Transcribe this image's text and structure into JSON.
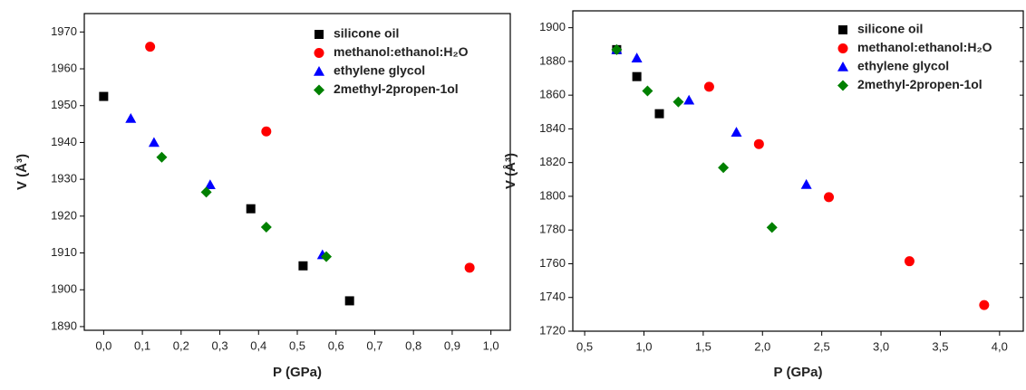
{
  "chart_data": [
    {
      "type": "scatter",
      "x_label": "P (GPa)",
      "y_label": "V (Å³)",
      "xlim": [
        -0.05,
        1.05
      ],
      "xticks": [
        {
          "value": 0,
          "label": "0,0"
        },
        {
          "value": 0.1,
          "label": "0,1"
        },
        {
          "value": 0.2,
          "label": "0,2"
        },
        {
          "value": 0.3,
          "label": "0,3"
        },
        {
          "value": 0.4,
          "label": "0,4"
        },
        {
          "value": 0.5,
          "label": "0,5"
        },
        {
          "value": 0.6,
          "label": "0,6"
        },
        {
          "value": 0.7,
          "label": "0,7"
        },
        {
          "value": 0.8,
          "label": "0,8"
        },
        {
          "value": 0.9,
          "label": "0,9"
        },
        {
          "value": 1.0,
          "label": "1,0"
        }
      ],
      "ylim": [
        1889,
        1975
      ],
      "yticks": [
        1890,
        1900,
        1910,
        1920,
        1930,
        1940,
        1950,
        1960,
        1970
      ],
      "series": [
        {
          "name": "silicone oil",
          "color": "#000000",
          "marker": "square",
          "x": [
            0.0,
            0.38,
            0.515,
            0.635
          ],
          "values": [
            1952.5,
            1922,
            1906.5,
            1897
          ]
        },
        {
          "name": "methanol:ethanol:H₂O",
          "color": "#ff0000",
          "marker": "circle",
          "x": [
            0.12,
            0.42,
            0.945
          ],
          "values": [
            1966,
            1943,
            1906
          ]
        },
        {
          "name": "ethylene glycol",
          "color": "#0000ff",
          "marker": "triangle",
          "x": [
            0.07,
            0.13,
            0.275,
            0.565
          ],
          "values": [
            1946.5,
            1940,
            1928.5,
            1909.5
          ]
        },
        {
          "name": "2methyl-2propen-1ol",
          "color": "#008000",
          "marker": "diamond",
          "x": [
            0.15,
            0.265,
            0.42,
            0.575
          ],
          "values": [
            1936,
            1926.5,
            1917,
            1909
          ]
        }
      ]
    },
    {
      "type": "scatter",
      "x_label": "P (GPa)",
      "y_label": "V (Å³)",
      "xlim": [
        0.4,
        4.2
      ],
      "xticks": [
        {
          "value": 0.5,
          "label": "0,5"
        },
        {
          "value": 1.0,
          "label": "1,0"
        },
        {
          "value": 1.5,
          "label": "1,5"
        },
        {
          "value": 2.0,
          "label": "2,0"
        },
        {
          "value": 2.5,
          "label": "2,5"
        },
        {
          "value": 3.0,
          "label": "3,0"
        },
        {
          "value": 3.5,
          "label": "3,5"
        },
        {
          "value": 4.0,
          "label": "4,0"
        }
      ],
      "ylim": [
        1720,
        1910
      ],
      "yticks": [
        1720,
        1740,
        1760,
        1780,
        1800,
        1820,
        1840,
        1860,
        1880,
        1900
      ],
      "series": [
        {
          "name": "silicone oil",
          "color": "#000000",
          "marker": "square",
          "x": [
            0.77,
            0.94,
            1.13
          ],
          "values": [
            1887,
            1871,
            1849
          ]
        },
        {
          "name": "methanol:ethanol:H₂O",
          "color": "#ff0000",
          "marker": "circle",
          "x": [
            1.55,
            1.97,
            2.56,
            3.24,
            3.87
          ],
          "values": [
            1865,
            1831,
            1799.5,
            1761.5,
            1735.5
          ]
        },
        {
          "name": "ethylene glycol",
          "color": "#0000ff",
          "marker": "triangle",
          "x": [
            0.77,
            0.94,
            1.38,
            1.78,
            2.37
          ],
          "values": [
            1887,
            1882,
            1857,
            1838,
            1807
          ]
        },
        {
          "name": "2methyl-2propen-1ol",
          "color": "#008000",
          "marker": "diamond",
          "x": [
            0.77,
            1.03,
            1.29,
            1.67,
            2.08
          ],
          "values": [
            1887,
            1862.5,
            1856,
            1817,
            1781.5
          ]
        }
      ]
    }
  ]
}
